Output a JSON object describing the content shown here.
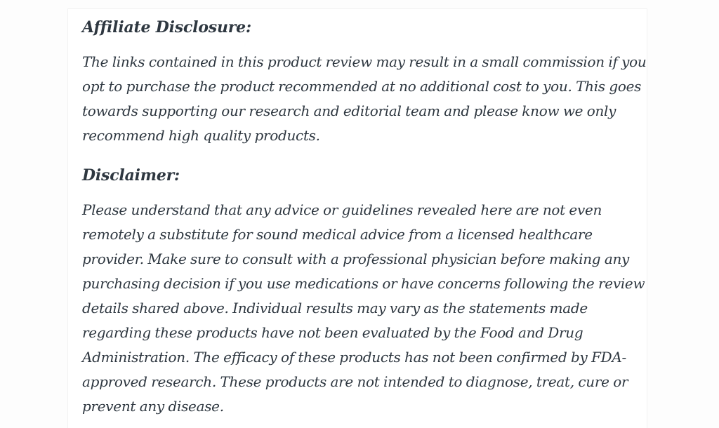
{
  "theme": {
    "page_background": "#fdfdfd",
    "card_background": "#ffffff",
    "card_border": "#f2f2f2",
    "text_color": "#2e3740"
  },
  "article": {
    "sections": [
      {
        "heading": "Affiliate Disclosure:",
        "paragraph": "The links contained in this product review may result in a small commission if you opt to purchase the product recommended at no additional cost to you. This goes towards supporting our research and editorial team and please know we only recommend high quality products."
      },
      {
        "heading": "Disclaimer:",
        "paragraph": "Please understand that any advice or guidelines revealed here are not even remotely a substitute for sound medical advice from a licensed healthcare provider. Make sure to consult with a professional physician before making any purchasing decision if you use medications or have concerns following the review details shared above. Individual results may vary as the statements made regarding these products have not been evaluated by the Food and Drug Administration. The efficacy of these products has not been confirmed by FDA-approved research. These products are not intended to diagnose, treat, cure or prevent any disease."
      }
    ]
  }
}
